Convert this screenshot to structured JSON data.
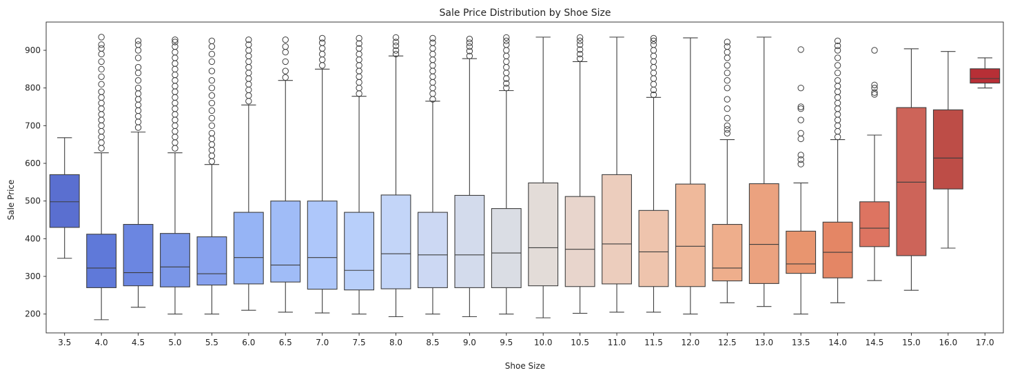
{
  "chart_data": {
    "type": "box",
    "title": "Sale Price Distribution by Shoe Size",
    "xlabel": "Shoe Size",
    "ylabel": "Sale Price",
    "ylim": [
      150,
      975
    ],
    "yticks": [
      200,
      300,
      400,
      500,
      600,
      700,
      800,
      900
    ],
    "grid": false,
    "legend": "none",
    "palette": "coolwarm",
    "edge_color": "#3d3d3d",
    "categories": [
      "3.5",
      "4.0",
      "4.5",
      "5.0",
      "5.5",
      "6.0",
      "6.5",
      "7.0",
      "7.5",
      "8.0",
      "8.5",
      "9.0",
      "9.5",
      "10.0",
      "10.5",
      "11.0",
      "11.5",
      "12.0",
      "12.5",
      "13.0",
      "13.5",
      "14.0",
      "14.5",
      "15.0",
      "16.0",
      "17.0"
    ],
    "boxes": [
      {
        "size": "3.5",
        "whisker_low": 348,
        "q1": 430,
        "median": 498,
        "q3": 570,
        "whisker_high": 668,
        "fill": "#5a6fd0",
        "outliers": []
      },
      {
        "size": "4.0",
        "whisker_low": 185,
        "q1": 270,
        "median": 322,
        "q3": 412,
        "whisker_high": 628,
        "fill": "#5f79d9",
        "outliers": [
          640,
          655,
          670,
          685,
          700,
          715,
          730,
          745,
          760,
          775,
          790,
          810,
          830,
          850,
          870,
          890,
          905,
          915,
          935
        ]
      },
      {
        "size": "4.5",
        "whisker_low": 218,
        "q1": 275,
        "median": 310,
        "q3": 438,
        "whisker_high": 683,
        "fill": "#6b86e1",
        "outliers": [
          695,
          710,
          725,
          740,
          755,
          770,
          785,
          800,
          820,
          840,
          855,
          880,
          900,
          915,
          925
        ]
      },
      {
        "size": "5.0",
        "whisker_low": 200,
        "q1": 272,
        "median": 325,
        "q3": 414,
        "whisker_high": 628,
        "fill": "#7995e7",
        "outliers": [
          640,
          655,
          670,
          685,
          700,
          715,
          730,
          745,
          760,
          775,
          790,
          805,
          820,
          835,
          850,
          865,
          880,
          895,
          910,
          922,
          928
        ]
      },
      {
        "size": "5.5",
        "whisker_low": 200,
        "q1": 277,
        "median": 307,
        "q3": 405,
        "whisker_high": 597,
        "fill": "#87a1ee",
        "outliers": [
          605,
          620,
          635,
          650,
          665,
          680,
          700,
          720,
          740,
          760,
          780,
          800,
          820,
          845,
          870,
          890,
          910,
          925
        ]
      },
      {
        "size": "6.0",
        "whisker_low": 210,
        "q1": 280,
        "median": 350,
        "q3": 470,
        "whisker_high": 755,
        "fill": "#96b4f5",
        "outliers": [
          765,
          780,
          795,
          810,
          825,
          840,
          855,
          870,
          885,
          900,
          915,
          928
        ]
      },
      {
        "size": "6.5",
        "whisker_low": 205,
        "q1": 285,
        "median": 330,
        "q3": 500,
        "whisker_high": 820,
        "fill": "#a0bcf7",
        "outliers": [
          828,
          845,
          870,
          895,
          910,
          928
        ]
      },
      {
        "size": "7.0",
        "whisker_low": 203,
        "q1": 266,
        "median": 350,
        "q3": 500,
        "whisker_high": 850,
        "fill": "#aec7fa",
        "outliers": [
          860,
          875,
          890,
          905,
          920,
          932
        ]
      },
      {
        "size": "7.5",
        "whisker_low": 200,
        "q1": 264,
        "median": 316,
        "q3": 470,
        "whisker_high": 778,
        "fill": "#b8cffa",
        "outliers": [
          785,
          800,
          815,
          830,
          845,
          860,
          875,
          890,
          905,
          918,
          932
        ]
      },
      {
        "size": "8.0",
        "whisker_low": 193,
        "q1": 267,
        "median": 360,
        "q3": 516,
        "whisker_high": 885,
        "fill": "#c3d5f8",
        "outliers": [
          890,
          900,
          912,
          922,
          934
        ]
      },
      {
        "size": "8.5",
        "whisker_low": 200,
        "q1": 270,
        "median": 357,
        "q3": 470,
        "whisker_high": 765,
        "fill": "#ccd8f3",
        "outliers": [
          770,
          785,
          800,
          815,
          830,
          845,
          860,
          875,
          890,
          905,
          920,
          932
        ]
      },
      {
        "size": "9.0",
        "whisker_low": 193,
        "q1": 270,
        "median": 357,
        "q3": 515,
        "whisker_high": 878,
        "fill": "#d3dbec",
        "outliers": [
          885,
          898,
          910,
          920,
          930
        ]
      },
      {
        "size": "9.5",
        "whisker_low": 200,
        "q1": 270,
        "median": 362,
        "q3": 480,
        "whisker_high": 793,
        "fill": "#dadde4",
        "outliers": [
          800,
          812,
          825,
          840,
          855,
          870,
          885,
          900,
          915,
          925,
          934
        ]
      },
      {
        "size": "10.0",
        "whisker_low": 190,
        "q1": 275,
        "median": 376,
        "q3": 548,
        "whisker_high": 935,
        "fill": "#e3dcd8",
        "outliers": []
      },
      {
        "size": "10.5",
        "whisker_low": 202,
        "q1": 273,
        "median": 372,
        "q3": 512,
        "whisker_high": 870,
        "fill": "#e8d5cc",
        "outliers": [
          878,
          890,
          902,
          915,
          925,
          934
        ]
      },
      {
        "size": "11.0",
        "whisker_low": 205,
        "q1": 280,
        "median": 386,
        "q3": 570,
        "whisker_high": 935,
        "fill": "#eccdbd",
        "outliers": []
      },
      {
        "size": "11.5",
        "whisker_low": 205,
        "q1": 273,
        "median": 365,
        "q3": 475,
        "whisker_high": 775,
        "fill": "#eec4ad",
        "outliers": [
          782,
          795,
          810,
          825,
          840,
          855,
          870,
          885,
          900,
          915,
          925,
          932
        ]
      },
      {
        "size": "12.0",
        "whisker_low": 200,
        "q1": 273,
        "median": 380,
        "q3": 545,
        "whisker_high": 933,
        "fill": "#efb99b",
        "outliers": []
      },
      {
        "size": "12.5",
        "whisker_low": 230,
        "q1": 288,
        "median": 322,
        "q3": 438,
        "whisker_high": 663,
        "fill": "#eeae8c",
        "outliers": [
          680,
          690,
          700,
          720,
          745,
          770,
          800,
          820,
          840,
          860,
          880,
          895,
          910,
          922
        ]
      },
      {
        "size": "13.0",
        "whisker_low": 220,
        "q1": 281,
        "median": 385,
        "q3": 546,
        "whisker_high": 935,
        "fill": "#eba27f",
        "outliers": []
      },
      {
        "size": "13.5",
        "whisker_low": 200,
        "q1": 308,
        "median": 333,
        "q3": 420,
        "whisker_high": 548,
        "fill": "#e8956f",
        "outliers": [
          598,
          610,
          622,
          665,
          680,
          715,
          745,
          750,
          800,
          902
        ]
      },
      {
        "size": "14.0",
        "whisker_low": 230,
        "q1": 296,
        "median": 364,
        "q3": 444,
        "whisker_high": 663,
        "fill": "#e48665",
        "outliers": [
          670,
          685,
          700,
          715,
          730,
          745,
          760,
          775,
          790,
          805,
          820,
          840,
          860,
          880,
          900,
          912,
          925
        ]
      },
      {
        "size": "14.5",
        "whisker_low": 289,
        "q1": 379,
        "median": 428,
        "q3": 498,
        "whisker_high": 675,
        "fill": "#dd7461",
        "outliers": [
          783,
          788,
          800,
          808,
          900
        ]
      },
      {
        "size": "15.0",
        "whisker_low": 263,
        "q1": 355,
        "median": 550,
        "q3": 748,
        "whisker_high": 904,
        "fill": "#cd6459",
        "outliers": []
      },
      {
        "size": "16.0",
        "whisker_low": 375,
        "q1": 532,
        "median": 614,
        "q3": 742,
        "whisker_high": 897,
        "fill": "#bd4d47",
        "outliers": []
      },
      {
        "size": "17.0",
        "whisker_low": 800,
        "q1": 813,
        "median": 825,
        "q3": 851,
        "whisker_high": 880,
        "fill": "#b72f36",
        "outliers": []
      }
    ]
  }
}
